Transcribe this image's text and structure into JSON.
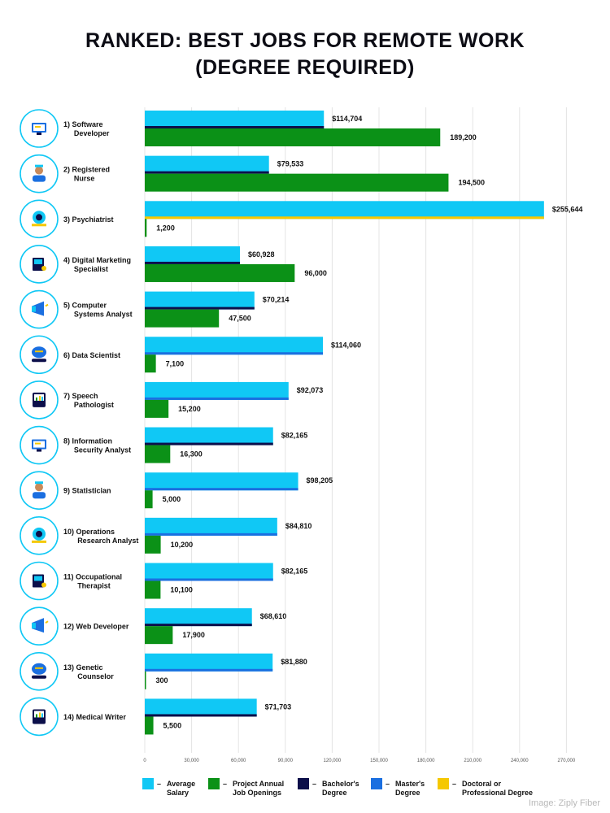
{
  "chart_data": {
    "type": "bar",
    "orientation": "horizontal",
    "title": [
      "RANKED: BEST JOBS FOR REMOTE WORK",
      "(DEGREE REQUIRED)"
    ],
    "categories": [
      [
        "1) Software",
        "Developer"
      ],
      [
        "2) Registered",
        "Nurse"
      ],
      [
        "3) Psychiatrist"
      ],
      [
        "4) Digital Marketing",
        "Specialist"
      ],
      [
        "5) Computer",
        "Systems Analyst"
      ],
      [
        "6) Data Scientist"
      ],
      [
        "7) Speech",
        "Pathologist"
      ],
      [
        "8) Information",
        "Security Analyst"
      ],
      [
        "9) Statistician"
      ],
      [
        "10) Operations",
        "Research Analyst"
      ],
      [
        "11) Occupational",
        "Therapist"
      ],
      [
        "12) Web Developer"
      ],
      [
        "13) Genetic",
        "Counselor"
      ],
      [
        "14) Medical Writer"
      ]
    ],
    "icons": [
      "software-developer-icon",
      "registered-nurse-icon",
      "psychiatrist-icon",
      "digital-marketing-icon",
      "computer-systems-icon",
      "data-scientist-icon",
      "speech-pathologist-icon",
      "security-analyst-icon",
      "statistician-icon",
      "operations-research-icon",
      "occupational-therapist-icon",
      "web-developer-icon",
      "genetic-counselor-icon",
      "medical-writer-icon"
    ],
    "series": [
      {
        "name": "Average Salary",
        "color": "#10c8f5",
        "values": [
          114704,
          79533,
          255644,
          60928,
          70214,
          114060,
          92073,
          82165,
          98205,
          84810,
          82165,
          68610,
          81880,
          71703
        ],
        "labels": [
          "$114,704",
          "$79,533",
          "$255,644",
          "$60,928",
          "$70,214",
          "$114,060",
          "$92,073",
          "$82,165",
          "$98,205",
          "$84,810",
          "$82,165",
          "$68,610",
          "$81,880",
          "$71,703"
        ]
      },
      {
        "name": "Project Annual Job Openings",
        "color": "#0b9117",
        "values": [
          189200,
          194500,
          1200,
          96000,
          47500,
          7100,
          15200,
          16300,
          5000,
          10200,
          10100,
          17900,
          300,
          5500
        ],
        "labels": [
          "189,200",
          "194,500",
          "1,200",
          "96,000",
          "47,500",
          "7,100",
          "15,200",
          "16,300",
          "5,000",
          "10,200",
          "10,100",
          "17,900",
          "300",
          "5,500"
        ]
      }
    ],
    "degree_required": [
      "Bachelor's Degree",
      "Bachelor's Degree",
      "Doctoral or Professional Degree",
      "Bachelor's Degree",
      "Bachelor's Degree",
      "Master's Degree",
      "Master's Degree",
      "Bachelor's Degree",
      "Master's Degree",
      "Master's Degree",
      "Master's Degree",
      "Bachelor's Degree",
      "Master's Degree",
      "Bachelor's Degree"
    ],
    "degree_colors": {
      "Bachelor's Degree": "#0c0f4a",
      "Master's Degree": "#1b6fe0",
      "Doctoral or Professional Degree": "#f5c800"
    },
    "xlim": [
      0,
      270000
    ],
    "xticks": [
      0,
      30000,
      60000,
      90000,
      120000,
      150000,
      180000,
      210000,
      240000,
      270000
    ],
    "xtick_labels": [
      "0",
      "30,000",
      "60,000",
      "90,000",
      "120,000",
      "150,000",
      "180,000",
      "210,000",
      "240,000",
      "270,000"
    ],
    "grid": true,
    "legend_position": "bottom",
    "legend": [
      {
        "lines": [
          "Average",
          "Salary"
        ],
        "color": "#10c8f5"
      },
      {
        "lines": [
          "Project Annual",
          "Job Openings"
        ],
        "color": "#0b9117"
      },
      {
        "lines": [
          "Bachelor's",
          "Degree"
        ],
        "color": "#0c0f4a"
      },
      {
        "lines": [
          "Master's",
          "Degree"
        ],
        "color": "#1b6fe0"
      },
      {
        "lines": [
          "Doctoral or",
          "Professional Degree"
        ],
        "color": "#f5c800"
      }
    ],
    "legend_marker_text": "–",
    "source": "Image: Ziply Fiber"
  },
  "accent_color": "#10c8f5"
}
